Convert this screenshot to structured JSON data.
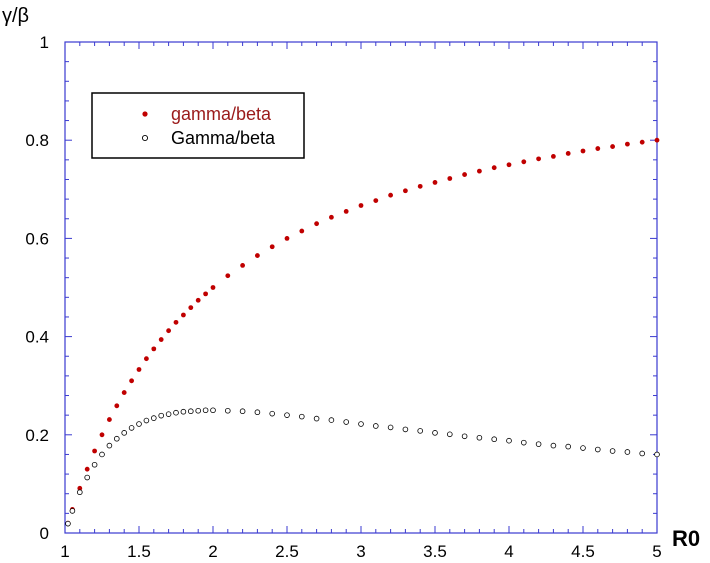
{
  "chart_data": {
    "type": "scatter",
    "title": "",
    "xlabel": "R0",
    "ylabel": "γ/β",
    "xlim": [
      1,
      5
    ],
    "ylim": [
      0,
      1
    ],
    "x_ticks": [
      1,
      1.5,
      2,
      2.5,
      3,
      3.5,
      4,
      4.5,
      5
    ],
    "x_tick_labels": [
      "1",
      "1.5",
      "2",
      "2.5",
      "3",
      "3.5",
      "4",
      "4.5",
      "5"
    ],
    "y_ticks": [
      0,
      0.2,
      0.4,
      0.6,
      0.8,
      1
    ],
    "y_tick_labels": [
      "0",
      "0.2",
      "0.4",
      "0.6",
      "0.8",
      "1"
    ],
    "grid": false,
    "frame_color": "#3a3ad0",
    "legend": {
      "placement": "top-left",
      "entries": [
        "gamma/beta",
        "Gamma/beta"
      ]
    },
    "series": [
      {
        "name": "gamma/beta",
        "marker": "filled-circle",
        "color": "#c00000",
        "x": [
          1.02,
          1.05,
          1.1,
          1.15,
          1.2,
          1.25,
          1.3,
          1.35,
          1.4,
          1.45,
          1.5,
          1.55,
          1.6,
          1.65,
          1.7,
          1.75,
          1.8,
          1.85,
          1.9,
          1.95,
          2.0,
          2.1,
          2.2,
          2.3,
          2.4,
          2.5,
          2.6,
          2.7,
          2.8,
          2.9,
          3.0,
          3.1,
          3.2,
          3.3,
          3.4,
          3.5,
          3.6,
          3.7,
          3.8,
          3.9,
          4.0,
          4.1,
          4.2,
          4.3,
          4.4,
          4.5,
          4.6,
          4.7,
          4.8,
          4.9,
          5.0
        ],
        "y": [
          0.02,
          0.048,
          0.091,
          0.13,
          0.167,
          0.2,
          0.231,
          0.259,
          0.286,
          0.31,
          0.333,
          0.355,
          0.375,
          0.394,
          0.412,
          0.429,
          0.444,
          0.459,
          0.474,
          0.487,
          0.5,
          0.524,
          0.545,
          0.565,
          0.583,
          0.6,
          0.615,
          0.63,
          0.643,
          0.655,
          0.667,
          0.677,
          0.688,
          0.697,
          0.706,
          0.714,
          0.722,
          0.73,
          0.737,
          0.744,
          0.75,
          0.756,
          0.762,
          0.767,
          0.773,
          0.778,
          0.783,
          0.787,
          0.792,
          0.796,
          0.8
        ]
      },
      {
        "name": "Gamma/beta",
        "marker": "open-circle",
        "color": "#000000",
        "x": [
          1.02,
          1.05,
          1.1,
          1.15,
          1.2,
          1.25,
          1.3,
          1.35,
          1.4,
          1.45,
          1.5,
          1.55,
          1.6,
          1.65,
          1.7,
          1.75,
          1.8,
          1.85,
          1.9,
          1.95,
          2.0,
          2.1,
          2.2,
          2.3,
          2.4,
          2.5,
          2.6,
          2.7,
          2.8,
          2.9,
          3.0,
          3.1,
          3.2,
          3.3,
          3.4,
          3.5,
          3.6,
          3.7,
          3.8,
          3.9,
          4.0,
          4.1,
          4.2,
          4.3,
          4.4,
          4.5,
          4.6,
          4.7,
          4.8,
          4.9,
          5.0
        ],
        "y": [
          0.019,
          0.045,
          0.083,
          0.113,
          0.139,
          0.16,
          0.178,
          0.192,
          0.204,
          0.214,
          0.222,
          0.229,
          0.234,
          0.239,
          0.242,
          0.245,
          0.247,
          0.248,
          0.249,
          0.25,
          0.25,
          0.249,
          0.248,
          0.246,
          0.243,
          0.24,
          0.237,
          0.233,
          0.23,
          0.226,
          0.222,
          0.218,
          0.215,
          0.211,
          0.208,
          0.204,
          0.201,
          0.197,
          0.194,
          0.191,
          0.188,
          0.184,
          0.181,
          0.178,
          0.176,
          0.173,
          0.17,
          0.167,
          0.165,
          0.162,
          0.16
        ]
      }
    ]
  }
}
